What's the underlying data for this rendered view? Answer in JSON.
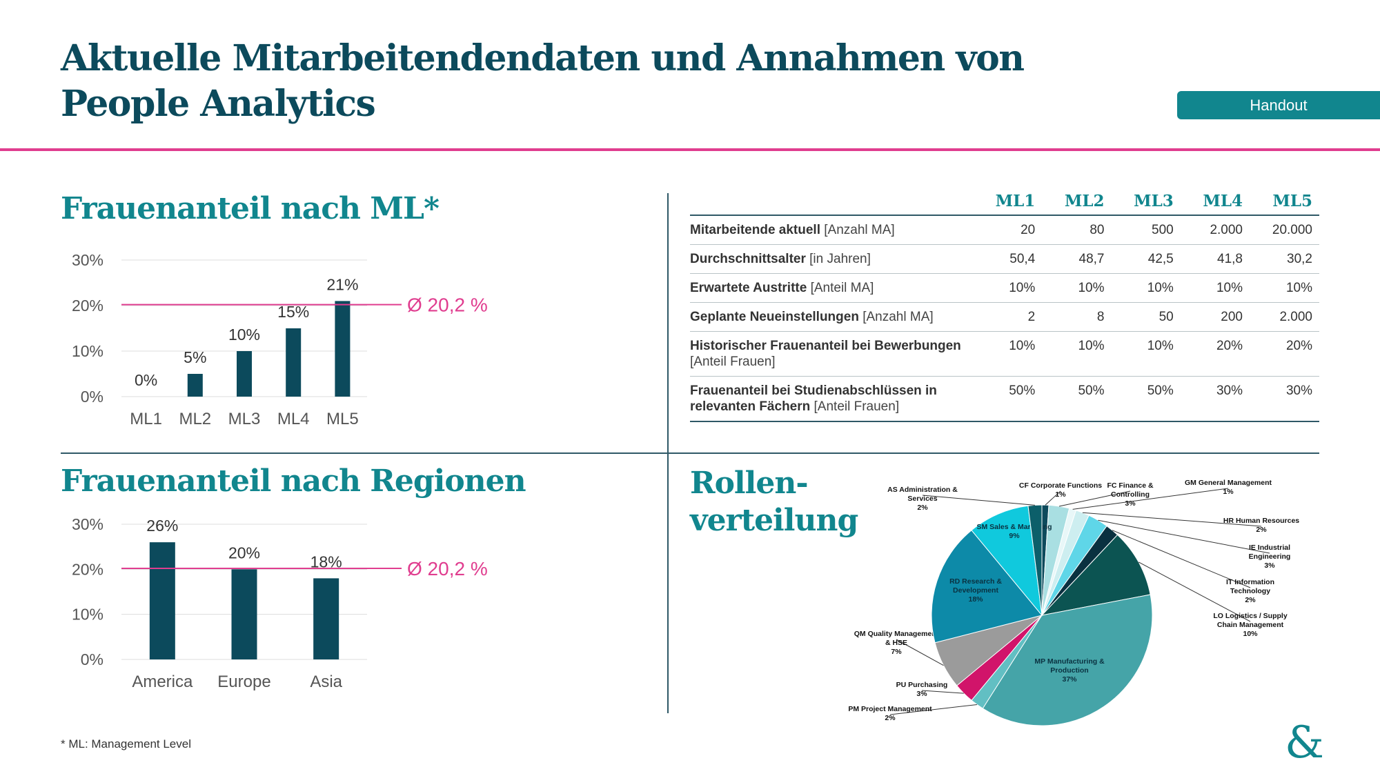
{
  "page": {
    "title": "Aktuelle Mitarbeitendendaten und Annahmen von People Analytics",
    "handout_label": "Handout",
    "footnote": "* ML: Management Level",
    "logo_text": "&"
  },
  "sections": {
    "ml_title": "Frauenanteil nach ML*",
    "regions_title": "Frauenanteil nach Regionen",
    "roles_title_line1": "Rollen-",
    "roles_title_line2": "verteilung"
  },
  "colors": {
    "bar": "#0c4a5c",
    "accent": "#11868e",
    "average_line": "#e03d8f",
    "divider": "#2e5866"
  },
  "table": {
    "headers": [
      "ML1",
      "ML2",
      "ML3",
      "ML4",
      "ML5"
    ],
    "rows": [
      {
        "label": "Mitarbeitende aktuell",
        "unit": "[Anzahl MA]",
        "values": [
          "20",
          "80",
          "500",
          "2.000",
          "20.000"
        ]
      },
      {
        "label": "Durchschnittsalter",
        "unit": "[in Jahren]",
        "values": [
          "50,4",
          "48,7",
          "42,5",
          "41,8",
          "30,2"
        ]
      },
      {
        "label": "Erwartete Austritte",
        "unit": "[Anteil MA]",
        "values": [
          "10%",
          "10%",
          "10%",
          "10%",
          "10%"
        ]
      },
      {
        "label": "Geplante Neueinstellungen",
        "unit": "[Anzahl MA]",
        "values": [
          "2",
          "8",
          "50",
          "200",
          "2.000"
        ]
      },
      {
        "label": "Historischer Frauenanteil bei Bewerbungen",
        "unit": "[Anteil Frauen]",
        "values": [
          "10%",
          "10%",
          "10%",
          "20%",
          "20%"
        ]
      },
      {
        "label": "Frauenanteil bei Studienabschlüssen in relevanten Fächern",
        "unit": "[Anteil Frauen]",
        "values": [
          "50%",
          "50%",
          "50%",
          "30%",
          "30%"
        ]
      }
    ]
  },
  "chart_data": [
    {
      "type": "bar",
      "title": "Frauenanteil nach ML*",
      "categories": [
        "ML1",
        "ML2",
        "ML3",
        "ML4",
        "ML5"
      ],
      "values": [
        0,
        5,
        10,
        15,
        21
      ],
      "value_labels": [
        "0%",
        "5%",
        "10%",
        "15%",
        "21%"
      ],
      "y_ticks": [
        "0%",
        "10%",
        "20%",
        "30%"
      ],
      "ylim": [
        0,
        30
      ],
      "grid": true,
      "average": {
        "value": 20.2,
        "label": "Ø 20,2 %"
      }
    },
    {
      "type": "bar",
      "title": "Frauenanteil nach Regionen",
      "categories": [
        "America",
        "Europe",
        "Asia"
      ],
      "values": [
        26,
        20,
        18
      ],
      "value_labels": [
        "26%",
        "20%",
        "18%"
      ],
      "y_ticks": [
        "0%",
        "10%",
        "20%",
        "30%"
      ],
      "ylim": [
        0,
        30
      ],
      "grid": true,
      "average": {
        "value": 20.2,
        "label": "Ø 20,2 %"
      }
    },
    {
      "type": "pie",
      "title": "Rollen-verteilung",
      "slices": [
        {
          "code": "CF",
          "name": "Corporate Functions",
          "label": "CF Corporate Functions",
          "pct": "1%",
          "value": 1,
          "color": "#0c4a5c"
        },
        {
          "code": "FC",
          "name": "Finance & Controlling",
          "label": "FC Finance & Controlling",
          "pct": "3%",
          "value": 3,
          "color": "#a9dfe2"
        },
        {
          "code": "GM",
          "name": "General Management",
          "label": "GM General Management",
          "pct": "1%",
          "value": 1,
          "color": "#e8f7f8"
        },
        {
          "code": "HR",
          "name": "Human Resources",
          "label": "HR Human Resources",
          "pct": "2%",
          "value": 2,
          "color": "#cdeef0"
        },
        {
          "code": "IE",
          "name": "Industrial Engineering",
          "label": "IE Industrial Engineering",
          "pct": "3%",
          "value": 3,
          "color": "#5fd6e8"
        },
        {
          "code": "IT",
          "name": "Information Technology",
          "label": "IT Information Technology",
          "pct": "2%",
          "value": 2,
          "color": "#0a3140"
        },
        {
          "code": "LO",
          "name": "Logistics / Supply Chain Management",
          "label": "LO Logistics / Supply Chain Management",
          "pct": "10%",
          "value": 10,
          "color": "#0c5452"
        },
        {
          "code": "MP",
          "name": "Manufacturing & Production",
          "label": "MP Manufacturing & Production",
          "pct": "37%",
          "value": 37,
          "color": "#45a4a8"
        },
        {
          "code": "PM",
          "name": "Project Management",
          "label": "PM Project Management",
          "pct": "2%",
          "value": 2,
          "color": "#62bfc3"
        },
        {
          "code": "PU",
          "name": "Purchasing",
          "label": "PU Purchasing",
          "pct": "3%",
          "value": 3,
          "color": "#d1146a"
        },
        {
          "code": "QM",
          "name": "Quality Management & HSE",
          "label": "QM Quality Management & HSE",
          "pct": "7%",
          "value": 7,
          "color": "#9b9b9b"
        },
        {
          "code": "RD",
          "name": "Research & Development",
          "label": "RD Research & Development",
          "pct": "18%",
          "value": 18,
          "color": "#0d8aa8"
        },
        {
          "code": "SM",
          "name": "Sales & Marketing",
          "label": "SM Sales & Marketing",
          "pct": "9%",
          "value": 9,
          "color": "#10c9dd"
        },
        {
          "code": "AS",
          "name": "Administration & Services",
          "label": "AS Administration & Services",
          "pct": "2%",
          "value": 2,
          "color": "#0c5f6a"
        }
      ]
    }
  ]
}
